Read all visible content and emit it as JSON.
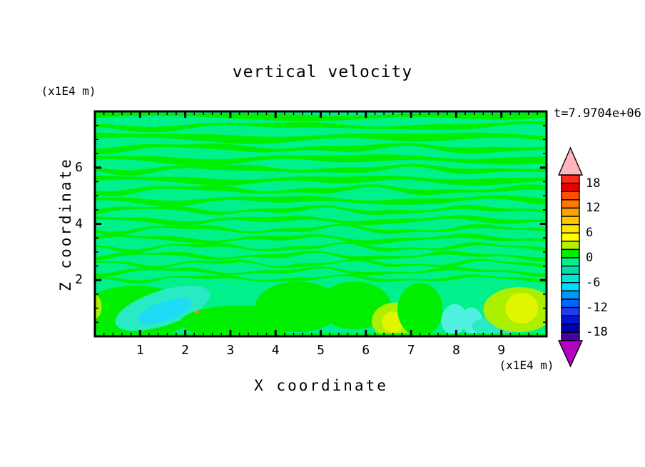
{
  "chart_data": {
    "type": "filled-contour",
    "title": "vertical velocity",
    "xlabel": "X coordinate",
    "ylabel": "Z coordinate",
    "x_unit_label": "(x1E4 m)",
    "z_unit_label": "(x1E4 m)",
    "time_label": "t=7.9704e+06",
    "xlim": [
      0,
      10
    ],
    "zlim": [
      0,
      8
    ],
    "xticks": [
      1,
      2,
      3,
      4,
      5,
      6,
      7,
      8,
      9
    ],
    "x_minor_step": 0.2,
    "zticks": [
      2,
      4,
      6
    ],
    "z_minor_step": 0.5,
    "grid": false,
    "legend_position": "right-colorbar",
    "colorbar": {
      "value_max": 20,
      "value_min": -20,
      "interval": 2,
      "tick_labels": [
        "18",
        "12",
        "6",
        "0",
        "-6",
        "-12",
        "-18"
      ],
      "label_every_n_levels": 3,
      "over_color": "#FFB4BE",
      "under_color": "#B400C3",
      "colors_top_to_bottom": [
        "#FF2A1E",
        "#EB0000",
        "#FF5000",
        "#FF7800",
        "#FFA000",
        "#FFC800",
        "#FFE600",
        "#FFFF00",
        "#B4F000",
        "#00EF00",
        "#00F08C",
        "#00DCAA",
        "#00E6D7",
        "#00DCFF",
        "#0096FF",
        "#0064FF",
        "#1E3CF0",
        "#0014DC",
        "#0000B4",
        "#4600A5"
      ]
    },
    "field": {
      "description": "wavy horizontal alternating bands of weakly positive/negative velocity above z=2; larger blobs below z=2",
      "background": "#00F08C",
      "palette": {
        "green": "#00EF00",
        "teal": "#28EBC3",
        "cyan": "#1EDCF5",
        "paleCyan": "#50F0E1",
        "chartreuse": "#AAF000",
        "yellow": "#E1F500",
        "orange": "#FF8C00"
      },
      "bands": [
        {
          "z": 7.92,
          "t": 0.22,
          "amp": 0.05,
          "f": 1.2,
          "p": 0.1
        },
        {
          "z": 7.55,
          "t": 0.18,
          "amp": 0.07,
          "f": 1.8,
          "p": 0.55
        },
        {
          "z": 7.18,
          "t": 0.26,
          "amp": 0.06,
          "f": 1.4,
          "p": 0.2
        },
        {
          "z": 6.78,
          "t": 0.2,
          "amp": 0.08,
          "f": 2.2,
          "p": 0.8
        },
        {
          "z": 6.4,
          "t": 0.24,
          "amp": 0.07,
          "f": 1.6,
          "p": 0.35
        },
        {
          "z": 6.02,
          "t": 0.18,
          "amp": 0.08,
          "f": 2.4,
          "p": 0.6
        },
        {
          "z": 5.65,
          "t": 0.22,
          "amp": 0.06,
          "f": 1.9,
          "p": 0.15
        },
        {
          "z": 5.28,
          "t": 0.17,
          "amp": 0.09,
          "f": 2.6,
          "p": 0.7
        },
        {
          "z": 4.92,
          "t": 0.2,
          "amp": 0.07,
          "f": 2.1,
          "p": 0.4
        },
        {
          "z": 4.55,
          "t": 0.15,
          "amp": 0.09,
          "f": 2.8,
          "p": 0.9
        },
        {
          "z": 4.2,
          "t": 0.17,
          "amp": 0.08,
          "f": 2.5,
          "p": 0.25
        },
        {
          "z": 3.86,
          "t": 0.13,
          "amp": 0.1,
          "f": 3.0,
          "p": 0.65
        },
        {
          "z": 3.53,
          "t": 0.15,
          "amp": 0.09,
          "f": 2.7,
          "p": 0.05
        },
        {
          "z": 3.22,
          "t": 0.12,
          "amp": 0.1,
          "f": 3.2,
          "p": 0.5
        },
        {
          "z": 2.92,
          "t": 0.13,
          "amp": 0.09,
          "f": 3.0,
          "p": 0.85
        },
        {
          "z": 2.63,
          "t": 0.11,
          "amp": 0.1,
          "f": 3.4,
          "p": 0.3
        },
        {
          "z": 2.36,
          "t": 0.12,
          "amp": 0.09,
          "f": 3.1,
          "p": 0.75
        },
        {
          "z": 2.1,
          "t": 0.11,
          "amp": 0.08,
          "f": 3.3,
          "p": 0.45
        }
      ],
      "blobs": [
        {
          "x": 0.9,
          "z": 0.85,
          "rx": 1.25,
          "rz": 0.95,
          "c": "green",
          "rot": 0
        },
        {
          "x": 1.5,
          "z": 1.0,
          "rx": 1.1,
          "rz": 0.62,
          "c": "teal",
          "rot": -18
        },
        {
          "x": 1.55,
          "z": 0.9,
          "rx": 0.62,
          "rz": 0.34,
          "c": "cyan",
          "rot": -18
        },
        {
          "x": 0.0,
          "z": 1.05,
          "rx": 0.15,
          "rz": 0.42,
          "c": "chartreuse",
          "rot": 0
        },
        {
          "x": 3.2,
          "z": 0.5,
          "rx": 1.3,
          "rz": 0.6,
          "c": "green",
          "rot": 0
        },
        {
          "x": 4.5,
          "z": 1.05,
          "rx": 0.95,
          "rz": 0.9,
          "c": "green",
          "rot": 0
        },
        {
          "x": 5.75,
          "z": 1.1,
          "rx": 0.8,
          "rz": 0.85,
          "c": "green",
          "rot": 0
        },
        {
          "x": 6.65,
          "z": 0.55,
          "rx": 0.52,
          "rz": 0.65,
          "c": "chartreuse",
          "rot": 0
        },
        {
          "x": 6.6,
          "z": 0.5,
          "rx": 0.24,
          "rz": 0.38,
          "c": "yellow",
          "rot": 0
        },
        {
          "x": 7.2,
          "z": 0.95,
          "rx": 0.5,
          "rz": 0.95,
          "c": "green",
          "rot": 0
        },
        {
          "x": 7.95,
          "z": 0.6,
          "rx": 0.28,
          "rz": 0.55,
          "c": "paleCyan",
          "rot": 10
        },
        {
          "x": 8.35,
          "z": 0.55,
          "rx": 0.24,
          "rz": 0.48,
          "c": "paleCyan",
          "rot": -10
        },
        {
          "x": 8.85,
          "z": 0.35,
          "rx": 0.5,
          "rz": 0.35,
          "c": "teal",
          "rot": 0
        },
        {
          "x": 9.4,
          "z": 0.95,
          "rx": 0.8,
          "rz": 0.8,
          "c": "chartreuse",
          "rot": 0
        },
        {
          "x": 9.45,
          "z": 1.0,
          "rx": 0.36,
          "rz": 0.55,
          "c": "yellow",
          "rot": 0
        },
        {
          "x": 2.26,
          "z": 0.86,
          "rx": 0.05,
          "rz": 0.05,
          "c": "orange",
          "rot": 0
        }
      ],
      "bottom_strip": {
        "h": 0.1,
        "c": "green"
      }
    }
  }
}
